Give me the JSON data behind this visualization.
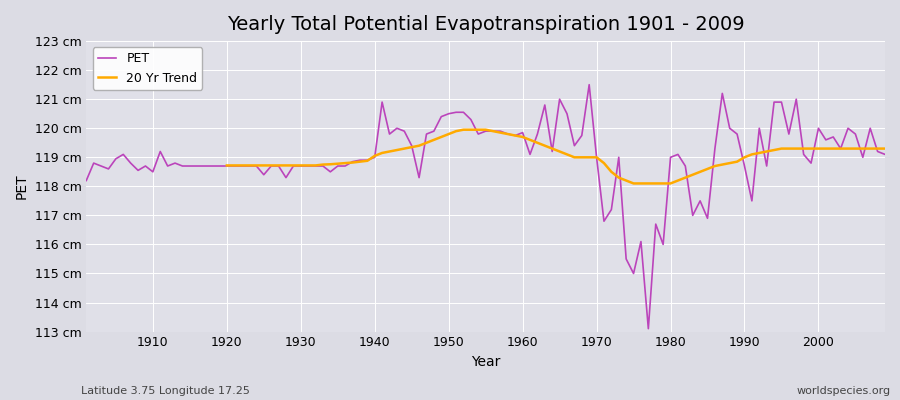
{
  "title": "Yearly Total Potential Evapotranspiration 1901 - 2009",
  "xlabel": "Year",
  "ylabel": "PET",
  "subtitle_left": "Latitude 3.75 Longitude 17.25",
  "subtitle_right": "worldspecies.org",
  "ylim": [
    113,
    123
  ],
  "xlim": [
    1901,
    2009
  ],
  "ytick_labels": [
    "113 cm",
    "114 cm",
    "115 cm",
    "116 cm",
    "117 cm",
    "118 cm",
    "119 cm",
    "120 cm",
    "121 cm",
    "122 cm",
    "123 cm"
  ],
  "ytick_values": [
    113,
    114,
    115,
    116,
    117,
    118,
    119,
    120,
    121,
    122,
    123
  ],
  "xtick_values": [
    1910,
    1920,
    1930,
    1940,
    1950,
    1960,
    1970,
    1980,
    1990,
    2000
  ],
  "pet_color": "#bb44bb",
  "trend_color": "#ffaa00",
  "fig_bg_color": "#dcdce4",
  "plot_bg_color": "#e0e0e8",
  "grid_color": "#ffffff",
  "legend_pet": "PET",
  "legend_trend": "20 Yr Trend",
  "years": [
    1901,
    1902,
    1903,
    1904,
    1905,
    1906,
    1907,
    1908,
    1909,
    1910,
    1911,
    1912,
    1913,
    1914,
    1915,
    1916,
    1917,
    1918,
    1919,
    1920,
    1921,
    1922,
    1923,
    1924,
    1925,
    1926,
    1927,
    1928,
    1929,
    1930,
    1931,
    1932,
    1933,
    1934,
    1935,
    1936,
    1937,
    1938,
    1939,
    1940,
    1941,
    1942,
    1943,
    1944,
    1945,
    1946,
    1947,
    1948,
    1949,
    1950,
    1951,
    1952,
    1953,
    1954,
    1955,
    1956,
    1957,
    1958,
    1959,
    1960,
    1961,
    1962,
    1963,
    1964,
    1965,
    1966,
    1967,
    1968,
    1969,
    1970,
    1971,
    1972,
    1973,
    1974,
    1975,
    1976,
    1977,
    1978,
    1979,
    1980,
    1981,
    1982,
    1983,
    1984,
    1985,
    1986,
    1987,
    1988,
    1989,
    1990,
    1991,
    1992,
    1993,
    1994,
    1995,
    1996,
    1997,
    1998,
    1999,
    2000,
    2001,
    2002,
    2003,
    2004,
    2005,
    2006,
    2007,
    2008,
    2009
  ],
  "pet_values": [
    118.2,
    118.8,
    118.7,
    118.6,
    118.95,
    119.1,
    118.8,
    118.55,
    118.7,
    118.5,
    119.2,
    118.7,
    118.8,
    118.7,
    118.7,
    118.7,
    118.7,
    118.7,
    118.7,
    118.7,
    118.7,
    118.7,
    118.7,
    118.7,
    118.4,
    118.7,
    118.7,
    118.3,
    118.7,
    118.7,
    118.7,
    118.7,
    118.7,
    118.5,
    118.7,
    118.7,
    118.85,
    118.9,
    118.9,
    119.0,
    120.9,
    119.8,
    120.0,
    119.9,
    119.4,
    118.3,
    119.8,
    119.9,
    120.4,
    120.5,
    120.55,
    120.55,
    120.3,
    119.8,
    119.9,
    119.9,
    119.9,
    119.8,
    119.75,
    119.85,
    119.1,
    119.8,
    120.8,
    119.2,
    121.0,
    120.5,
    119.4,
    119.75,
    121.5,
    119.0,
    116.8,
    117.2,
    119.0,
    115.5,
    115.0,
    116.1,
    113.1,
    116.7,
    116.0,
    119.0,
    119.1,
    118.7,
    117.0,
    117.5,
    116.9,
    119.3,
    121.2,
    120.0,
    119.8,
    118.7,
    117.5,
    120.0,
    118.7,
    120.9,
    120.9,
    119.8,
    121.0,
    119.1,
    118.8,
    120.0,
    119.6,
    119.7,
    119.3,
    120.0,
    119.8,
    119.0,
    120.0,
    119.2,
    119.1
  ],
  "trend_values": [
    null,
    null,
    null,
    null,
    null,
    null,
    null,
    null,
    null,
    null,
    null,
    null,
    null,
    null,
    null,
    null,
    null,
    null,
    null,
    118.72,
    118.72,
    118.72,
    118.72,
    118.72,
    118.72,
    118.72,
    118.72,
    118.72,
    118.72,
    118.72,
    118.72,
    118.72,
    118.75,
    118.76,
    118.78,
    118.8,
    118.82,
    118.85,
    118.88,
    119.05,
    119.15,
    119.2,
    119.25,
    119.3,
    119.35,
    119.4,
    119.5,
    119.6,
    119.7,
    119.8,
    119.9,
    119.95,
    119.95,
    119.95,
    119.95,
    119.9,
    119.85,
    119.8,
    119.75,
    119.7,
    119.6,
    119.5,
    119.4,
    119.3,
    119.2,
    119.1,
    119.0,
    119.0,
    119.0,
    119.0,
    118.8,
    118.5,
    118.3,
    118.2,
    118.1,
    118.1,
    118.1,
    118.1,
    118.1,
    118.1,
    118.2,
    118.3,
    118.4,
    118.5,
    118.6,
    118.7,
    118.75,
    118.8,
    118.85,
    119.0,
    119.1,
    119.15,
    119.2,
    119.25,
    119.3,
    119.3,
    119.3,
    119.3,
    119.3,
    119.3,
    119.3,
    119.3,
    119.3,
    119.3,
    119.3,
    119.3,
    119.3,
    119.3,
    119.3
  ],
  "title_fontsize": 14,
  "axis_label_fontsize": 10,
  "tick_fontsize": 9,
  "legend_fontsize": 9
}
